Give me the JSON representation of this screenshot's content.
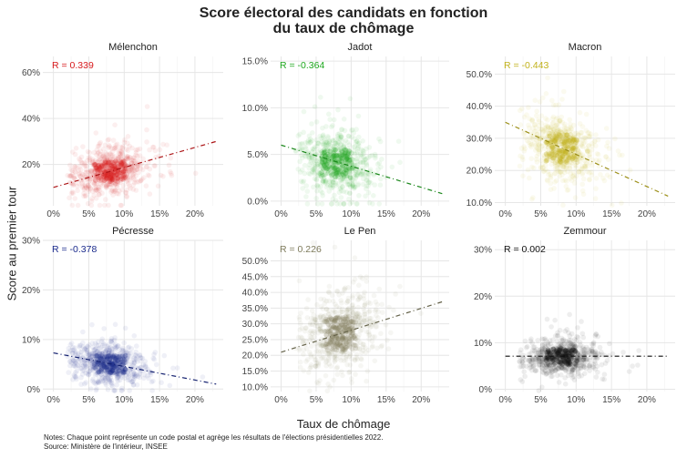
{
  "title_line1": "Score électoral des candidats en fonction",
  "title_line2": "du taux de chômage",
  "xlabel": "Taux de chômage",
  "ylabel": "Score au premier tour",
  "notes": "Notes: Chaque point représente un code postal et agrège les résultats de l'élections présidentielles 2022.",
  "source": "Source: Ministère de l'intérieur, INSEE",
  "chart_data": {
    "type": "scatter",
    "x_ticks": [
      "0%",
      "5%",
      "10%",
      "15%",
      "20%"
    ],
    "xlim": [
      -0.015,
      0.24
    ],
    "panels": [
      {
        "name": "Mélenchon",
        "r_label": "R = 0.339",
        "color": "#d7191c",
        "ylim": [
          0.02,
          0.67
        ],
        "y_ticks": [
          0.2,
          0.4,
          0.6
        ],
        "y_tick_labels": [
          "20%",
          "40%",
          "60%"
        ],
        "trend": {
          "x": [
            0.0,
            0.23
          ],
          "y": [
            0.1,
            0.3
          ]
        },
        "center": [
          0.08,
          0.17
        ],
        "spread": [
          0.025,
          0.05
        ]
      },
      {
        "name": "Jadot",
        "r_label": "R = -0.364",
        "color": "#1fa81f",
        "ylim": [
          -0.005,
          0.155
        ],
        "y_ticks": [
          0.0,
          0.05,
          0.1,
          0.15
        ],
        "y_tick_labels": [
          "0.0%",
          "5.0%",
          "10.0%",
          "15.0%"
        ],
        "trend": {
          "x": [
            0.0,
            0.23
          ],
          "y": [
            0.06,
            0.008
          ]
        },
        "center": [
          0.08,
          0.04
        ],
        "spread": [
          0.025,
          0.017
        ]
      },
      {
        "name": "Macron",
        "r_label": "R = -0.443",
        "color": "#c2b21c",
        "ylim": [
          0.09,
          0.555
        ],
        "y_ticks": [
          0.1,
          0.2,
          0.3,
          0.4,
          0.5
        ],
        "y_tick_labels": [
          "10.0%",
          "20.0%",
          "30.0%",
          "40.0%",
          "50.0%"
        ],
        "trend": {
          "x": [
            0.0,
            0.23
          ],
          "y": [
            0.35,
            0.12
          ]
        },
        "center": [
          0.08,
          0.27
        ],
        "spread": [
          0.025,
          0.05
        ]
      },
      {
        "name": "Pécresse",
        "r_label": "R = -0.378",
        "color": "#1a2a8c",
        "ylim": [
          -0.005,
          0.3
        ],
        "y_ticks": [
          0.0,
          0.1,
          0.2,
          0.3
        ],
        "y_tick_labels": [
          "0%",
          "10%",
          "20%",
          "30%"
        ],
        "trend": {
          "x": [
            0.0,
            0.23
          ],
          "y": [
            0.073,
            0.01
          ]
        },
        "center": [
          0.08,
          0.05
        ],
        "spread": [
          0.025,
          0.02
        ]
      },
      {
        "name": "Le Pen",
        "r_label": "R = 0.226",
        "color": "#7d7a5b",
        "ylim": [
          0.085,
          0.565
        ],
        "y_ticks": [
          0.1,
          0.15,
          0.2,
          0.25,
          0.3,
          0.35,
          0.4,
          0.45,
          0.5
        ],
        "y_tick_labels": [
          "10.0%",
          "15.0%",
          "20.0%",
          "25.0%",
          "30.0%",
          "35.0%",
          "40.0%",
          "45.0%",
          "50.0%"
        ],
        "trend": {
          "x": [
            0.0,
            0.23
          ],
          "y": [
            0.21,
            0.37
          ]
        },
        "center": [
          0.085,
          0.27
        ],
        "spread": [
          0.025,
          0.06
        ]
      },
      {
        "name": "Zemmour",
        "r_label": "R = 0.002",
        "color": "#111111",
        "ylim": [
          -0.005,
          0.32
        ],
        "y_ticks": [
          0.0,
          0.1,
          0.2,
          0.3
        ],
        "y_tick_labels": [
          "0%",
          "10%",
          "20%",
          "30%"
        ],
        "trend": {
          "x": [
            0.0,
            0.23
          ],
          "y": [
            0.071,
            0.071
          ]
        },
        "center": [
          0.08,
          0.07
        ],
        "spread": [
          0.025,
          0.02
        ]
      }
    ]
  }
}
